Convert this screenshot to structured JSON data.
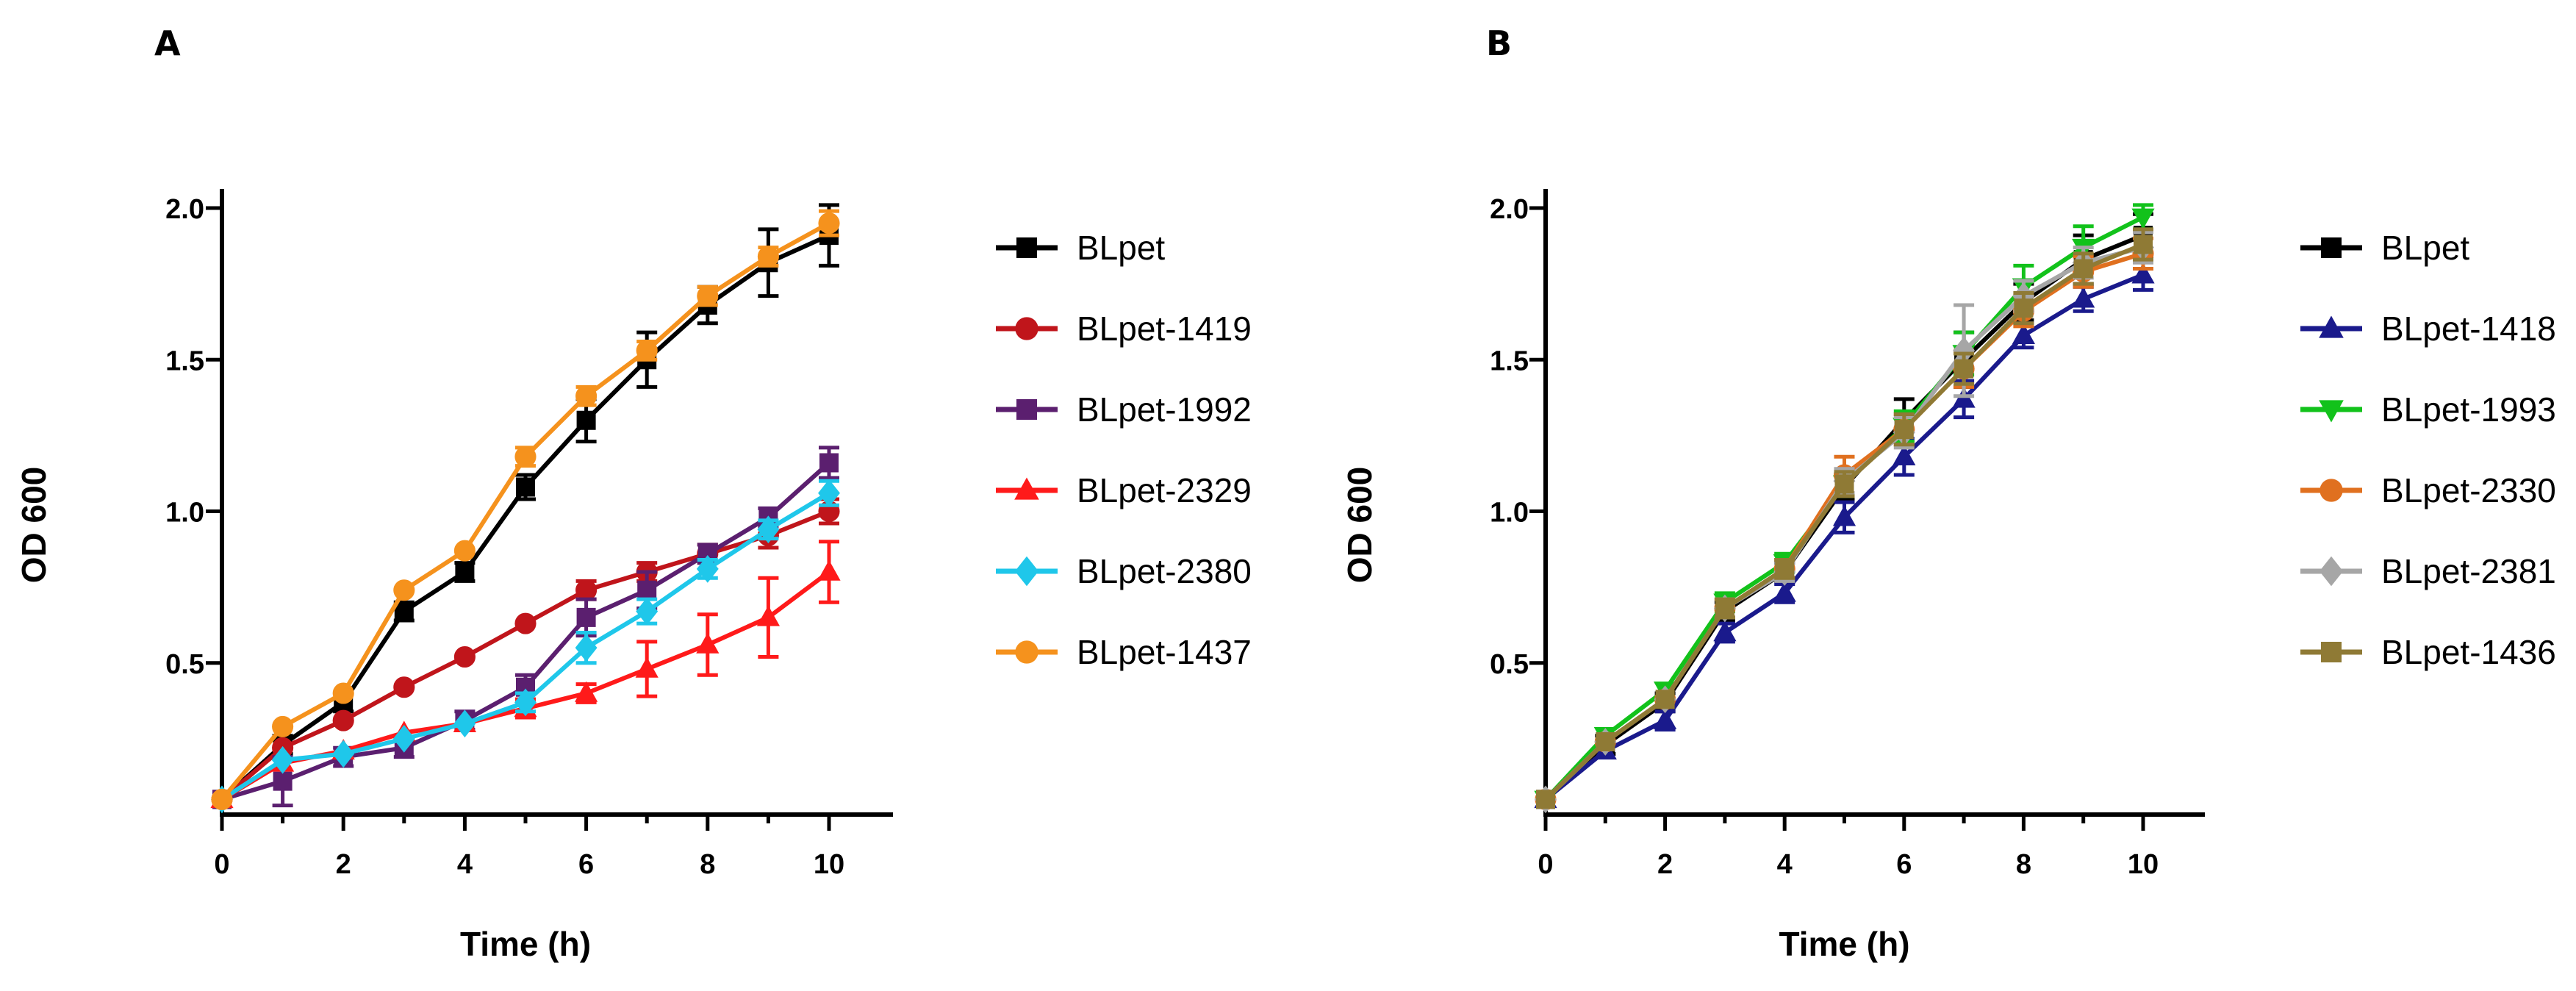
{
  "chart_data": [
    {
      "type": "line",
      "panel_label": "A",
      "xlabel": "Time (h)",
      "ylabel": "OD 600",
      "xlim": [
        0,
        10
      ],
      "ylim": [
        0,
        2.0
      ],
      "xticks": [
        0,
        2,
        4,
        6,
        8,
        10
      ],
      "yticks": [
        0.5,
        1.0,
        1.5,
        2.0
      ],
      "ytick_labels": [
        "0.5",
        "1.0",
        "1.5",
        "2.0"
      ],
      "legend_position": "right",
      "x": [
        0,
        1,
        2,
        3,
        4,
        5,
        6,
        7,
        8,
        9,
        10
      ],
      "series": [
        {
          "name": "BLpet",
          "color": "#000000",
          "marker": "square",
          "values": [
            0.05,
            0.23,
            0.37,
            0.67,
            0.8,
            1.08,
            1.3,
            1.5,
            1.68,
            1.82,
            1.91
          ],
          "errors": [
            0.02,
            0.03,
            0.03,
            0.03,
            0.03,
            0.04,
            0.07,
            0.09,
            0.06,
            0.11,
            0.1
          ]
        },
        {
          "name": "BLpet-1419",
          "color": "#c0151b",
          "marker": "circle",
          "values": [
            0.05,
            0.22,
            0.31,
            0.42,
            0.52,
            0.63,
            0.74,
            0.8,
            0.86,
            0.92,
            1.0
          ],
          "errors": [
            0.02,
            0.02,
            0.02,
            0.02,
            0.02,
            0.02,
            0.03,
            0.03,
            0.03,
            0.04,
            0.04
          ]
        },
        {
          "name": "BLpet-1992",
          "color": "#5b1f6f",
          "marker": "square",
          "values": [
            0.05,
            0.11,
            0.19,
            0.22,
            0.31,
            0.42,
            0.65,
            0.74,
            0.86,
            0.98,
            1.16
          ],
          "errors": [
            0.02,
            0.08,
            0.03,
            0.03,
            0.03,
            0.04,
            0.06,
            0.06,
            0.03,
            0.03,
            0.05
          ]
        },
        {
          "name": "BLpet-2329",
          "color": "#ff1a1a",
          "marker": "triangle",
          "values": [
            0.05,
            0.17,
            0.21,
            0.27,
            0.3,
            0.35,
            0.4,
            0.48,
            0.56,
            0.65,
            0.8
          ],
          "errors": [
            0.02,
            0.02,
            0.02,
            0.02,
            0.02,
            0.03,
            0.03,
            0.09,
            0.1,
            0.13,
            0.1
          ]
        },
        {
          "name": "BLpet-2380",
          "color": "#1fc7ea",
          "marker": "diamond",
          "values": [
            0.05,
            0.18,
            0.2,
            0.25,
            0.3,
            0.37,
            0.55,
            0.67,
            0.81,
            0.94,
            1.06
          ],
          "errors": [
            0.02,
            0.02,
            0.02,
            0.02,
            0.02,
            0.03,
            0.05,
            0.04,
            0.03,
            0.03,
            0.04
          ]
        },
        {
          "name": "BLpet-1437",
          "color": "#f5921d",
          "marker": "circle",
          "values": [
            0.05,
            0.29,
            0.4,
            0.74,
            0.87,
            1.18,
            1.38,
            1.53,
            1.71,
            1.84,
            1.95
          ],
          "errors": [
            0.02,
            0.02,
            0.02,
            0.02,
            0.02,
            0.03,
            0.03,
            0.03,
            0.03,
            0.03,
            0.04
          ]
        }
      ]
    },
    {
      "type": "line",
      "panel_label": "B",
      "xlabel": "Time (h)",
      "ylabel": "OD 600",
      "xlim": [
        0,
        10
      ],
      "ylim": [
        0,
        2.0
      ],
      "xticks": [
        0,
        2,
        4,
        6,
        8,
        10
      ],
      "yticks": [
        0.5,
        1.0,
        1.5,
        2.0
      ],
      "ytick_labels": [
        "0.5",
        "1.0",
        "1.5",
        "2.0"
      ],
      "legend_position": "right",
      "x": [
        0,
        1,
        2,
        3,
        4,
        5,
        6,
        7,
        8,
        9,
        10
      ],
      "series": [
        {
          "name": "BLpet",
          "color": "#000000",
          "marker": "square",
          "values": [
            0.05,
            0.23,
            0.37,
            0.67,
            0.8,
            1.08,
            1.3,
            1.5,
            1.69,
            1.83,
            1.91
          ],
          "errors": [
            0.02,
            0.03,
            0.03,
            0.03,
            0.03,
            0.04,
            0.07,
            0.09,
            0.06,
            0.08,
            0.07
          ]
        },
        {
          "name": "BLpet-1418",
          "color": "#1a1a8c",
          "marker": "triangle",
          "values": [
            0.05,
            0.21,
            0.31,
            0.6,
            0.73,
            0.98,
            1.18,
            1.37,
            1.58,
            1.7,
            1.78
          ],
          "errors": [
            0.02,
            0.02,
            0.03,
            0.03,
            0.03,
            0.05,
            0.06,
            0.06,
            0.04,
            0.04,
            0.05
          ]
        },
        {
          "name": "BLpet-1993",
          "color": "#12c21b",
          "marker": "triangle-down",
          "values": [
            0.05,
            0.26,
            0.41,
            0.7,
            0.83,
            1.09,
            1.28,
            1.52,
            1.74,
            1.87,
            1.97
          ],
          "errors": [
            0.02,
            0.02,
            0.02,
            0.03,
            0.03,
            0.04,
            0.05,
            0.07,
            0.07,
            0.07,
            0.04
          ]
        },
        {
          "name": "BLpet-2330",
          "color": "#e0701f",
          "marker": "circle",
          "values": [
            0.05,
            0.24,
            0.38,
            0.68,
            0.81,
            1.12,
            1.27,
            1.47,
            1.66,
            1.79,
            1.85
          ],
          "errors": [
            0.02,
            0.02,
            0.02,
            0.03,
            0.03,
            0.06,
            0.05,
            0.06,
            0.05,
            0.05,
            0.05
          ]
        },
        {
          "name": "BLpet-2381",
          "color": "#a6a6a6",
          "marker": "diamond",
          "values": [
            0.05,
            0.24,
            0.38,
            0.68,
            0.8,
            1.1,
            1.26,
            1.53,
            1.71,
            1.82,
            1.87
          ],
          "errors": [
            0.02,
            0.02,
            0.02,
            0.03,
            0.03,
            0.04,
            0.05,
            0.15,
            0.05,
            0.05,
            0.05
          ]
        },
        {
          "name": "BLpet-1436",
          "color": "#8f7a35",
          "marker": "square",
          "values": [
            0.05,
            0.24,
            0.38,
            0.68,
            0.81,
            1.09,
            1.27,
            1.47,
            1.67,
            1.8,
            1.88
          ],
          "errors": [
            0.02,
            0.02,
            0.02,
            0.03,
            0.03,
            0.04,
            0.05,
            0.05,
            0.05,
            0.05,
            0.05
          ]
        }
      ]
    }
  ]
}
